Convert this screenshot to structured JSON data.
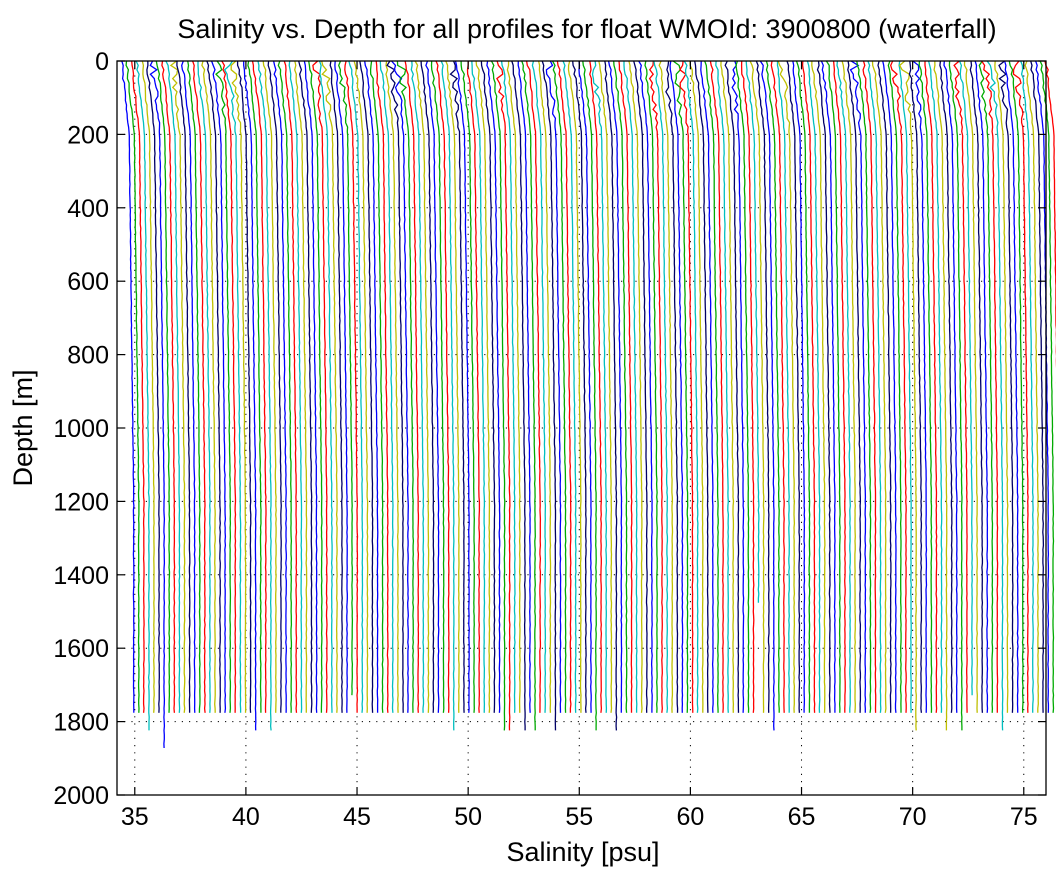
{
  "chart_data": {
    "type": "line",
    "title": "Salinity vs. Depth for all profiles for float WMOId: 3900800 (waterfall)",
    "xlabel": "Salinity [psu]",
    "ylabel": "Depth [m]",
    "xlim": [
      34.2,
      76.0
    ],
    "ylim": [
      0,
      2000
    ],
    "y_reversed": true,
    "grid": "dotted",
    "x_ticks": [
      "35",
      "40",
      "45",
      "50",
      "55",
      "60",
      "65",
      "70",
      "75"
    ],
    "x_tick_values": [
      35,
      40,
      45,
      50,
      55,
      60,
      65,
      70,
      75
    ],
    "y_ticks": [
      "0",
      "200",
      "400",
      "600",
      "800",
      "1000",
      "1200",
      "1400",
      "1600",
      "1800",
      "2000"
    ],
    "y_tick_values": [
      0,
      200,
      400,
      600,
      800,
      1000,
      1200,
      1400,
      1600,
      1800,
      2000
    ],
    "waterfall": {
      "profile_count": 183,
      "first_profile_surface_salinity": 34.4,
      "offset_per_profile_psu": 0.2286,
      "deep_salinity_shift_psu": 0.55,
      "typical_max_depth_m": 1780,
      "color_cycle": [
        "#0000ff",
        "#00aa00",
        "#ff0000",
        "#00bfbf",
        "#bfbf00",
        "#000066"
      ]
    },
    "series": [
      {
        "x_at_depths": [
          34.4,
          34.5,
          34.9,
          35.0,
          35.0
        ],
        "depths": [
          0,
          400,
          1000,
          1600,
          1780
        ]
      },
      {
        "x_at_depths": [
          34.6,
          34.8,
          35.1,
          35.2,
          35.2
        ],
        "depths": [
          0,
          400,
          1000,
          1600,
          1830
        ]
      },
      {
        "x_at_depths": [
          54.7,
          54.9,
          55.3,
          55.4,
          55.5
        ],
        "depths": [
          0,
          400,
          1000,
          1600,
          1780
        ]
      },
      {
        "x_at_depths": [
          75.3,
          75.5,
          75.8,
          75.9,
          76.0
        ],
        "depths": [
          0,
          400,
          1000,
          1600,
          1780
        ]
      }
    ]
  }
}
